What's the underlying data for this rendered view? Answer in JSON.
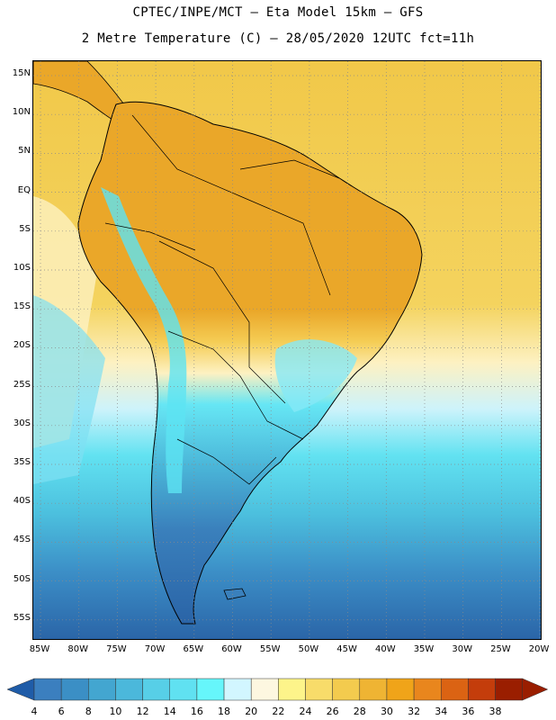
{
  "header": {
    "line1": "CPTEC/INPE/MCT –  Eta Model 15km – GFS",
    "line2": "2 Metre Temperature (C) – 28/05/2020 12UTC fct=11h"
  },
  "map": {
    "latitude_labels": [
      "15N",
      "10N",
      "5N",
      "EQ",
      "5S",
      "10S",
      "15S",
      "20S",
      "25S",
      "30S",
      "35S",
      "40S",
      "45S",
      "50S",
      "55S"
    ],
    "longitude_labels": [
      "85W",
      "80W",
      "75W",
      "70W",
      "65W",
      "60W",
      "55W",
      "50W",
      "45W",
      "40W",
      "35W",
      "30W",
      "25W",
      "20W"
    ],
    "colors": {
      "hot_zone": "#eaa729",
      "warm_zone": "#f5cd55",
      "mild_zone": "#fdf1c2",
      "cool_zone": "#5ce3f2",
      "cold_zone": "#3f86bf",
      "coldest_zone": "#2a64a7"
    }
  },
  "colorbar": {
    "ticks": [
      "4",
      "6",
      "8",
      "10",
      "12",
      "14",
      "16",
      "18",
      "20",
      "22",
      "24",
      "26",
      "28",
      "30",
      "32",
      "34",
      "36",
      "38"
    ],
    "colors": [
      "#3b7fbf",
      "#3b8fc5",
      "#43a6d0",
      "#4bb8db",
      "#57cfe7",
      "#60e1f1",
      "#66f6fb",
      "#d2f6ff",
      "#fdf7e0",
      "#fdf48a",
      "#f8dc6a",
      "#f3cb4e",
      "#efb433",
      "#f0a419",
      "#e9861d",
      "#db6313",
      "#c43d0b",
      "#9a1e00",
      "#1f5ca8"
    ]
  }
}
